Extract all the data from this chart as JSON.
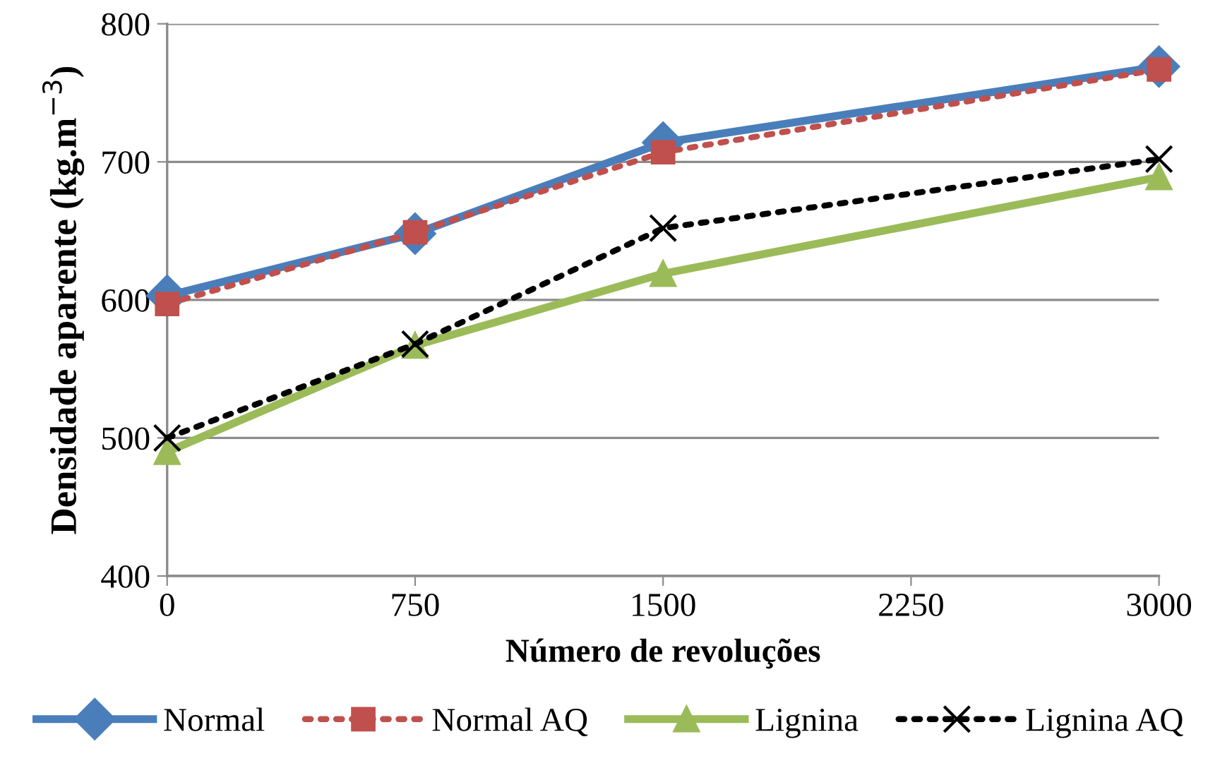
{
  "chart_data": {
    "type": "line",
    "xlabel": "Número de revoluções",
    "ylabel": "Densidade aparente (kg.m$^{−3}$)",
    "x": [
      0,
      750,
      1500,
      3000
    ],
    "series": [
      {
        "name": "Normal",
        "color": "#4a7ebb",
        "values": [
          603,
          648,
          714,
          769
        ],
        "marker": "diamond",
        "line_style": "solid"
      },
      {
        "name": "Normal AQ",
        "color": "#c0504d",
        "values": [
          597,
          649,
          707,
          767
        ],
        "marker": "square",
        "line_style": "dotted"
      },
      {
        "name": "Lignina",
        "color": "#9bbb59",
        "values": [
          490,
          567,
          619,
          689
        ],
        "marker": "triangle",
        "line_style": "solid"
      },
      {
        "name": "Lignina AQ",
        "color": "#000000",
        "values": [
          500,
          568,
          652,
          702
        ],
        "marker": "cross",
        "line_style": "dotted"
      }
    ],
    "xlim": [
      0,
      3000
    ],
    "xticks": [
      0,
      750,
      1500,
      2250,
      3000
    ],
    "ylim": [
      400,
      800
    ],
    "yticks": [
      400,
      500,
      600,
      700,
      800
    ],
    "grid": "y",
    "legend": "bottom"
  }
}
